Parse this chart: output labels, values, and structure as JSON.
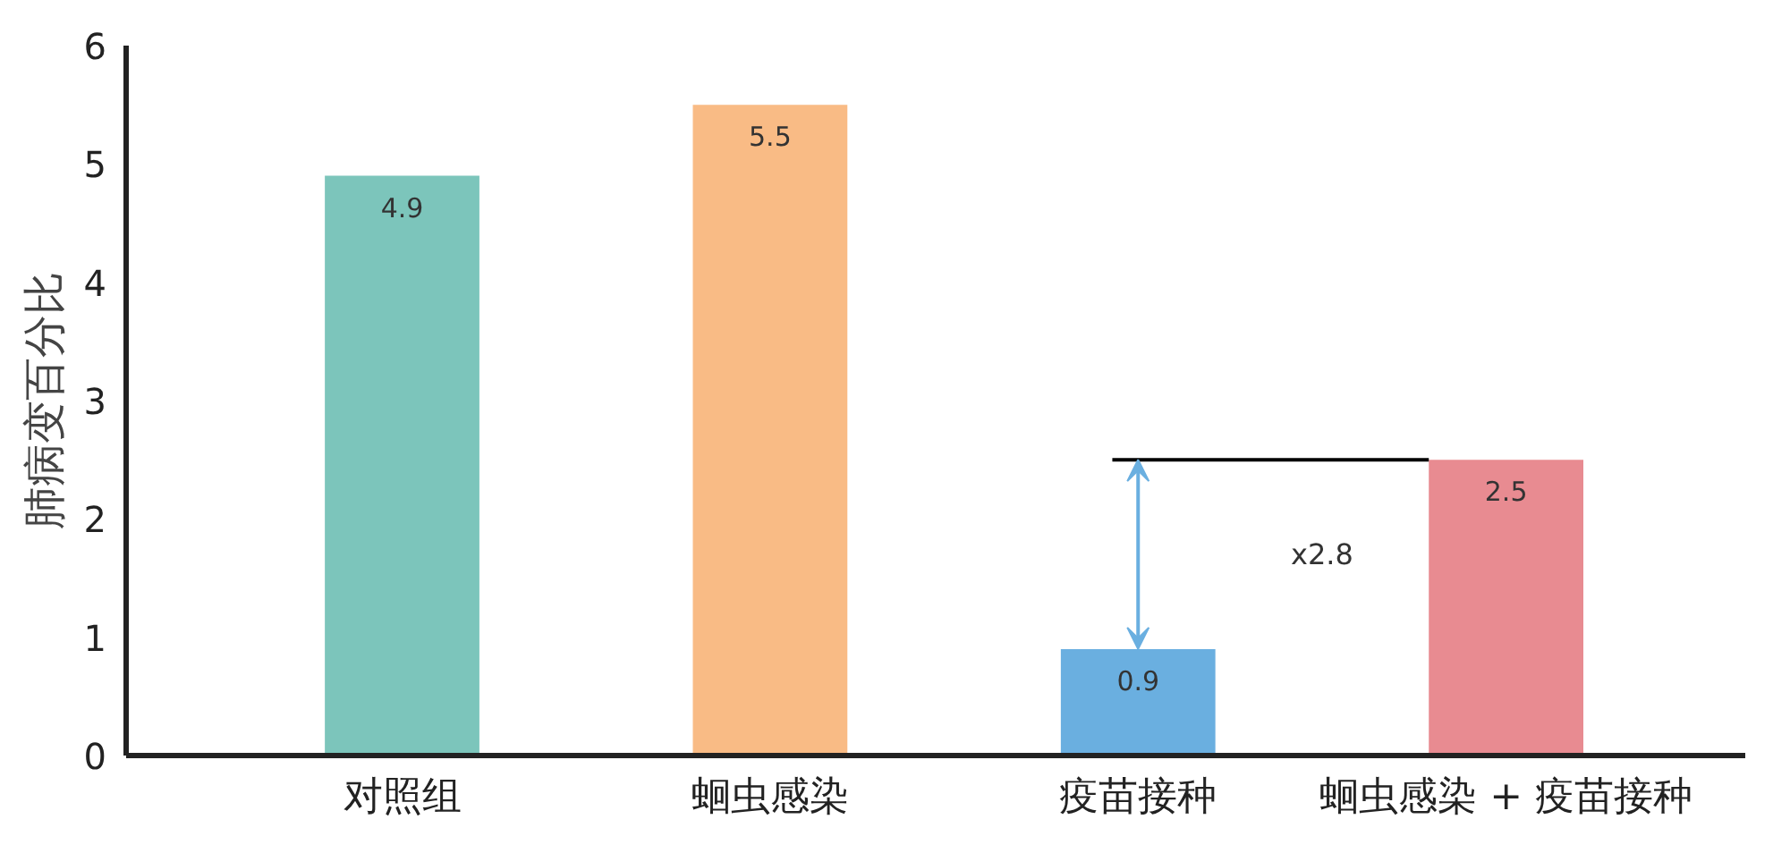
{
  "chart_data": {
    "type": "bar",
    "ylabel": "肺病变百分比",
    "categories": [
      "对照组",
      "蛔虫感染",
      "疫苗接种",
      "蛔虫感染 + 疫苗接种"
    ],
    "values": [
      4.9,
      5.5,
      0.9,
      2.5
    ],
    "colors": [
      "#7cc5bb",
      "#f9bb85",
      "#6aafe0",
      "#e88b91"
    ],
    "ylim": [
      0,
      6
    ],
    "yticks": [
      0,
      1,
      2,
      3,
      4,
      5,
      6
    ],
    "grid": false,
    "data_labels": true,
    "annotations": [
      "x2.8"
    ],
    "ref_lines": [
      {
        "axis": "y",
        "value": 2.5,
        "color": "#000000"
      }
    ]
  }
}
